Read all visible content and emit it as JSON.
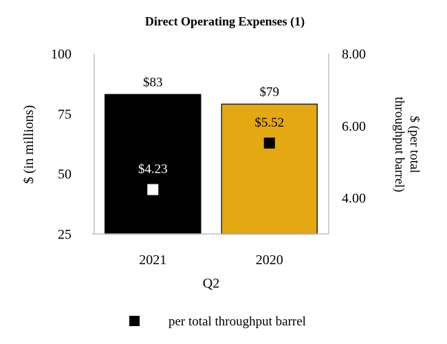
{
  "chart_data": {
    "type": "bar",
    "title": "Direct Operating Expenses (1)",
    "xlabel": "Q2",
    "ylabel": "$ (in millions)",
    "y2label": "$ (per total throughput barrel)",
    "categories": [
      "2021",
      "2020"
    ],
    "ylim": [
      25,
      100
    ],
    "yticks": [
      "100",
      "75",
      "50",
      "25"
    ],
    "y2lim": [
      3.0,
      8.0
    ],
    "y2ticks": [
      "8.00",
      "6.00",
      "4.00"
    ],
    "grid": false,
    "legend_position": "bottom",
    "series": [
      {
        "type": "bar",
        "axis": "left",
        "values": [
          83,
          79
        ],
        "labels": [
          "$83",
          "$79"
        ],
        "colors": [
          "#000000",
          "#E3A812"
        ]
      },
      {
        "type": "scatter",
        "axis": "right",
        "name": "per total throughput barrel",
        "values": [
          4.23,
          5.52
        ],
        "labels": [
          "$4.23",
          "$5.52"
        ],
        "colors": [
          "#FFFFFF",
          "#000000"
        ]
      }
    ]
  }
}
